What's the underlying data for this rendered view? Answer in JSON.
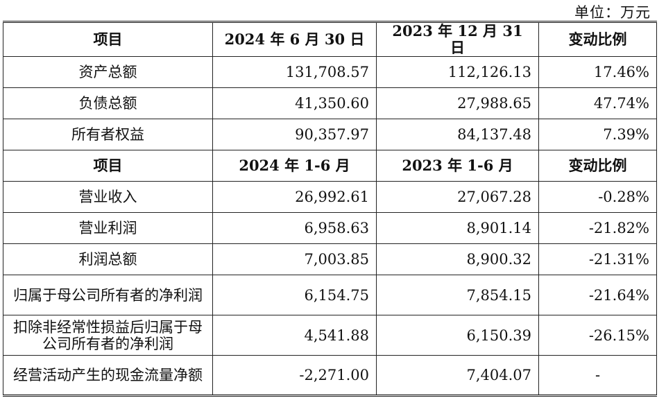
{
  "unit_label": "单位：万元",
  "balance_header": {
    "item": "项目",
    "col_a": "2024 年 6 月 30 日",
    "col_b": "2023 年 12 月 31 日",
    "change": "变动比例"
  },
  "balance_rows": [
    {
      "label": "资产总额",
      "a": "131,708.57",
      "b": "112,126.13",
      "change": "17.46%"
    },
    {
      "label": "负债总额",
      "a": "41,350.60",
      "b": "27,988.65",
      "change": "47.74%"
    },
    {
      "label": "所有者权益",
      "a": "90,357.97",
      "b": "84,137.48",
      "change": "7.39%"
    }
  ],
  "income_header": {
    "item": "项目",
    "col_a": "2024 年 1-6 月",
    "col_b": "2023 年 1-6 月",
    "change": "变动比例"
  },
  "income_rows": [
    {
      "label": "营业收入",
      "a": "26,992.61",
      "b": "27,067.28",
      "change": "-0.28%"
    },
    {
      "label": "营业利润",
      "a": "6,958.63",
      "b": "8,901.14",
      "change": "-21.82%"
    },
    {
      "label": "利润总额",
      "a": "7,003.85",
      "b": "8,900.32",
      "change": "-21.31%"
    },
    {
      "label": "归属于母公司所有者的净利润",
      "a": "6,154.75",
      "b": "7,854.15",
      "change": "-21.64%"
    },
    {
      "label": "扣除非经常性损益后归属于母公司所有者的净利润",
      "a": "4,541.88",
      "b": "6,150.39",
      "change": "-26.15%"
    },
    {
      "label": "经营活动产生的现金流量净额",
      "a": "-2,271.00",
      "b": "7,404.07",
      "change": "-"
    }
  ]
}
